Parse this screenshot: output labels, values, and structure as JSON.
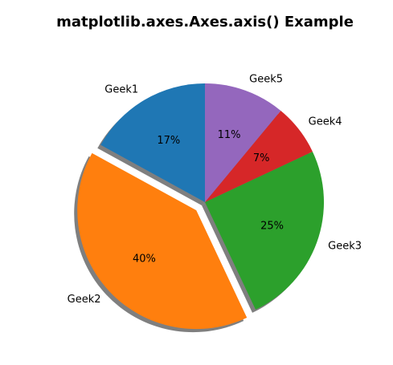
{
  "chart_data": {
    "type": "pie",
    "title": "matplotlib.axes.Axes.axis() Example",
    "start_angle_deg": 90,
    "direction": "counterclockwise",
    "shadow": true,
    "autopct_format": "%1.0f%%",
    "slices": [
      {
        "label": "Geek1",
        "value": 17,
        "pct_label": "17%",
        "color": "#1f77b4",
        "explode": 0
      },
      {
        "label": "Geek2",
        "value": 40,
        "pct_label": "40%",
        "color": "#ff7f0e",
        "explode": 0.1
      },
      {
        "label": "Geek3",
        "value": 25,
        "pct_label": "25%",
        "color": "#2ca02c",
        "explode": 0
      },
      {
        "label": "Geek4",
        "value": 7,
        "pct_label": "7%",
        "color": "#d62728",
        "explode": 0
      },
      {
        "label": "Geek5",
        "value": 11,
        "pct_label": "11%",
        "color": "#9467bd",
        "explode": 0
      }
    ]
  }
}
